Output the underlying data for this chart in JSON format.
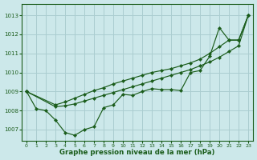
{
  "bg_color": "#cce8ea",
  "grid_color": "#aacdd0",
  "line_color": "#1a5c1a",
  "marker_color": "#1a5c1a",
  "xlabel": "Graphe pression niveau de la mer (hPa)",
  "xlabel_color": "#1a5c1a",
  "xlim": [
    -0.5,
    23.5
  ],
  "ylim": [
    1006.4,
    1013.6
  ],
  "yticks": [
    1007,
    1008,
    1009,
    1010,
    1011,
    1012,
    1013
  ],
  "xticks": [
    0,
    1,
    2,
    3,
    4,
    5,
    6,
    7,
    8,
    9,
    10,
    11,
    12,
    13,
    14,
    15,
    16,
    17,
    18,
    19,
    20,
    21,
    22,
    23
  ],
  "series1_x": [
    0,
    1,
    2,
    3,
    4,
    5,
    6,
    7,
    8,
    9,
    10,
    11,
    12,
    13,
    14,
    15,
    16,
    17,
    18,
    19,
    20,
    21,
    22,
    23
  ],
  "series1_y": [
    1009.0,
    1008.1,
    1008.0,
    1007.5,
    1006.85,
    1006.7,
    1007.0,
    1007.15,
    1008.15,
    1008.3,
    1008.85,
    1008.8,
    1009.0,
    1009.15,
    1009.1,
    1009.1,
    1009.05,
    1010.0,
    1010.1,
    1010.85,
    1012.35,
    1011.7,
    1011.7,
    1013.0
  ],
  "series2_x": [
    0,
    3,
    4,
    5,
    6,
    7,
    8,
    9,
    10,
    11,
    12,
    13,
    14,
    15,
    16,
    17,
    18,
    19,
    20,
    21,
    22,
    23
  ],
  "series2_y": [
    1009.0,
    1008.2,
    1008.25,
    1008.35,
    1008.5,
    1008.65,
    1008.8,
    1008.95,
    1009.1,
    1009.25,
    1009.4,
    1009.55,
    1009.7,
    1009.85,
    1010.0,
    1010.15,
    1010.35,
    1010.55,
    1010.8,
    1011.1,
    1011.4,
    1013.0
  ],
  "series3_x": [
    0,
    3,
    4,
    5,
    6,
    7,
    8,
    9,
    10,
    11,
    12,
    13,
    14,
    15,
    16,
    17,
    18,
    19,
    20,
    21,
    22,
    23
  ],
  "series3_y": [
    1009.0,
    1008.3,
    1008.45,
    1008.65,
    1008.85,
    1009.05,
    1009.2,
    1009.4,
    1009.55,
    1009.7,
    1009.85,
    1010.0,
    1010.1,
    1010.2,
    1010.35,
    1010.5,
    1010.7,
    1011.0,
    1011.35,
    1011.7,
    1011.7,
    1013.0
  ]
}
